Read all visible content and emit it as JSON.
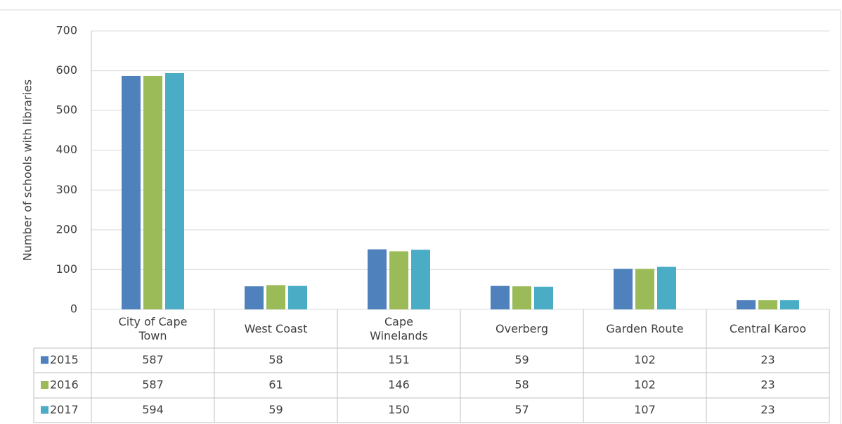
{
  "chart_data": {
    "type": "bar",
    "ylabel": "Number of schools with libraries",
    "categories": [
      "City of Cape Town",
      "West Coast",
      "Cape Winelands",
      "Overberg",
      "Garden Route",
      "Central Karoo"
    ],
    "series": [
      {
        "name": "2015",
        "color": "#4f81bd",
        "values": [
          587,
          58,
          151,
          59,
          102,
          23
        ]
      },
      {
        "name": "2016",
        "color": "#9bbb59",
        "values": [
          587,
          61,
          146,
          58,
          102,
          23
        ]
      },
      {
        "name": "2017",
        "color": "#4bacc6",
        "values": [
          594,
          59,
          150,
          57,
          107,
          23
        ]
      }
    ],
    "ylim": [
      0,
      700
    ],
    "yticks": [
      0,
      100,
      200,
      300,
      400,
      500,
      600,
      700
    ],
    "grid": true
  }
}
